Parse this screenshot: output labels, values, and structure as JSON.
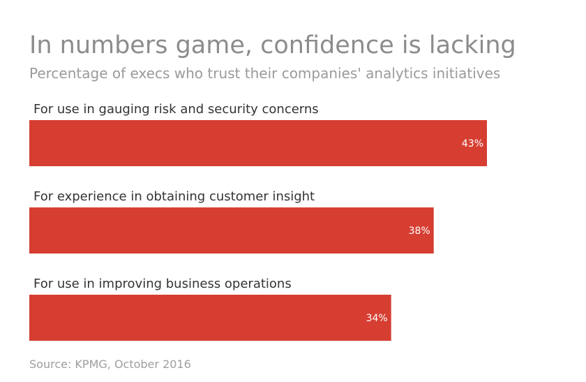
{
  "title": "In numbers game, confidence is lacking",
  "subtitle": "Percentage of execs who trust their companies' analytics initiatives",
  "source": "Source: KPMG, October 2016",
  "colors": {
    "bar": "#d63e32",
    "label": "#333333",
    "value_text": "#ffffff"
  },
  "chart_data": {
    "type": "bar",
    "orientation": "horizontal",
    "categories": [
      "For use in gauging risk and security concerns",
      "For experience in obtaining customer insight",
      "For use in improving business operations"
    ],
    "values": [
      43,
      38,
      34
    ],
    "data_labels": [
      "43%",
      "38%",
      "34%"
    ],
    "unit": "%",
    "xlim": [
      0,
      50
    ],
    "grid": false,
    "legend": "none"
  }
}
